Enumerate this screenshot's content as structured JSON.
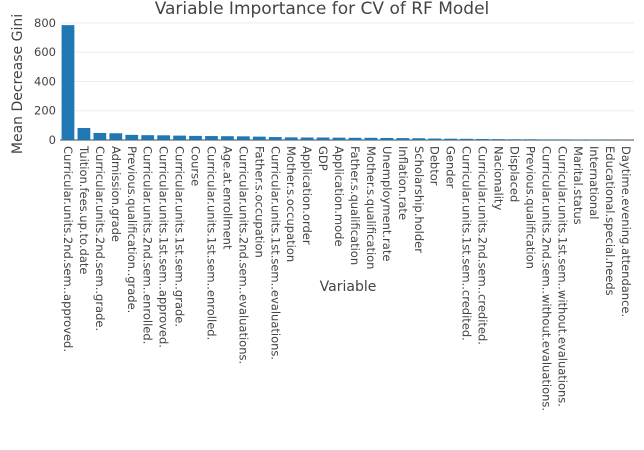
{
  "chart_data": {
    "type": "bar",
    "title": "Variable Importance for CV of RF Model",
    "xlabel": "Variable",
    "ylabel": "Mean Decrease Gini",
    "ylim": [
      0,
      820
    ],
    "yticks": [
      0,
      200,
      400,
      600,
      800
    ],
    "grid": true,
    "bar_color": "#1f77b4",
    "categories": [
      "Curricular.units.2nd.sem..approved.",
      "Tuition.fees.up.to.date",
      "Curricular.units.2nd.sem..grade.",
      "Admission.grade",
      "Previous.qualification..grade.",
      "Curricular.units.2nd.sem..enrolled.",
      "Curricular.units.1st.sem..approved.",
      "Curricular.units.1st.sem..grade.",
      "Course",
      "Curricular.units.1st.sem..enrolled.",
      "Age.at.enrollment",
      "Curricular.units.2nd.sem..evaluations.",
      "Father.s.occupation",
      "Curricular.units.1st.sem..evaluations.",
      "Mother.s.occupation",
      "Application.order",
      "GDP",
      "Application.mode",
      "Father.s.qualification",
      "Mother.s.qualification",
      "Unemployment.rate",
      "Inflation.rate",
      "Scholarship.holder",
      "Debtor",
      "Gender",
      "Curricular.units.1st.sem..credited.",
      "Curricular.units.2nd.sem..credited.",
      "Nacionality",
      "Displaced",
      "Previous.qualification",
      "Curricular.units.2nd.sem..without.evaluations.",
      "Curricular.units.1st.sem..without.evaluations.",
      "Marital.status",
      "International",
      "Educational.special.needs",
      "Daytime.evening.attendance."
    ],
    "values": [
      785,
      82,
      48,
      46,
      35,
      33,
      32,
      30,
      28,
      27,
      26,
      25,
      23,
      20,
      18,
      17,
      17,
      16,
      15,
      15,
      14,
      13,
      12,
      10,
      9,
      8,
      7,
      6,
      5,
      5,
      4,
      4,
      3,
      3,
      2,
      2
    ]
  }
}
